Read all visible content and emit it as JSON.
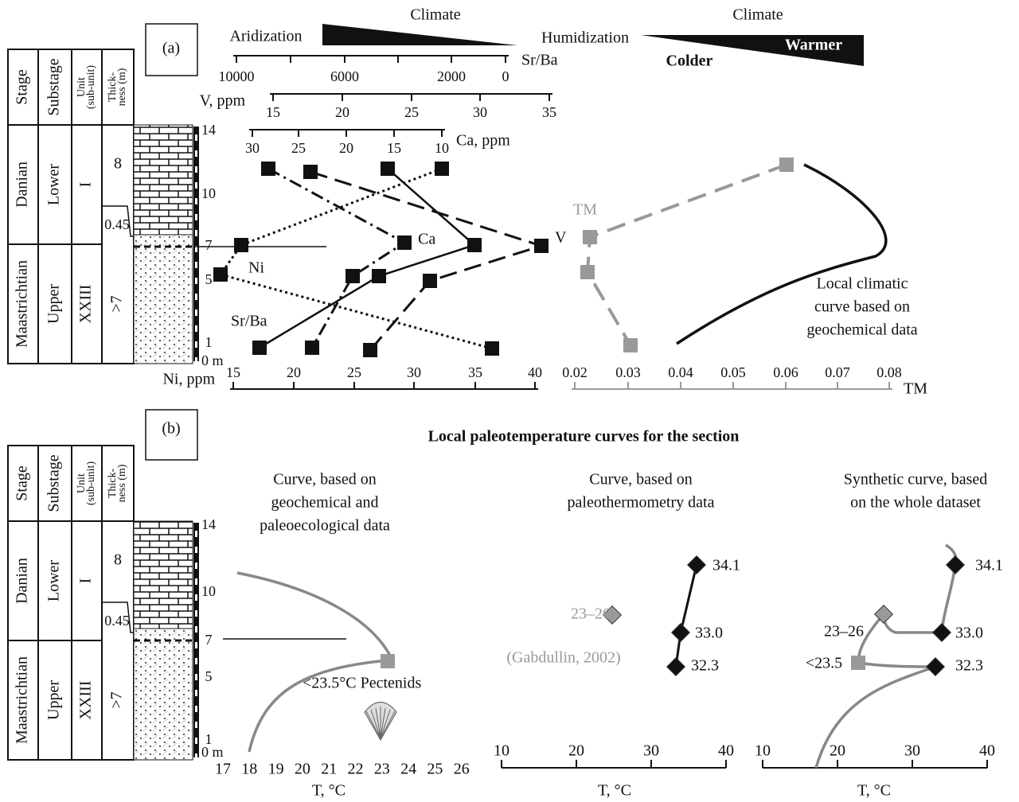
{
  "panel_a": {
    "label": "(a)",
    "table": {
      "headers": [
        [
          "Stage"
        ],
        [
          "Substage"
        ],
        [
          "Unit",
          "(sub-unit)"
        ],
        [
          "Thick-",
          "ness (m)"
        ]
      ],
      "stages": [
        "Danian",
        "Maastrichtian"
      ],
      "substages": [
        "Lower",
        "Upper"
      ],
      "units": [
        "I",
        "XXIII"
      ],
      "thickness": [
        "8",
        ">7"
      ],
      "thin_layer": "0.45",
      "depths": [
        "14",
        "10",
        "7",
        "5",
        "1",
        "0 m"
      ]
    },
    "climate_left": {
      "title": "Climate",
      "left": "Aridization",
      "right": "Humidization"
    },
    "climate_right": {
      "title": "Climate",
      "left": "Colder",
      "right": "Warmer"
    },
    "axes": {
      "srba": {
        "label": "Sr/Ba",
        "ticks": [
          "10000",
          "6000",
          "2000",
          "0"
        ]
      },
      "v": {
        "label": "V, ppm",
        "ticks": [
          "15",
          "20",
          "25",
          "30",
          "35"
        ]
      },
      "ca": {
        "label": "Ca, ppm",
        "ticks": [
          "30",
          "25",
          "20",
          "15",
          "10"
        ]
      },
      "ni": {
        "label": "Ni, ppm",
        "ticks": [
          "15",
          "20",
          "25",
          "30",
          "35",
          "40"
        ]
      },
      "tm": {
        "label": "TM",
        "ticks": [
          "0.02",
          "0.03",
          "0.04",
          "0.05",
          "0.06",
          "0.07",
          "0.08"
        ]
      }
    },
    "curve_labels": {
      "ca": "Ca",
      "v": "V",
      "ni": "Ni",
      "srba": "Sr/Ba",
      "tm": "TM",
      "climatic": [
        "Local climatic",
        "curve based on",
        "geochemical data"
      ]
    }
  },
  "panel_b": {
    "label": "(b)",
    "title": "Local paleotemperature curves for the section",
    "table": {
      "headers": [
        [
          "Stage"
        ],
        [
          "Substage"
        ],
        [
          "Unit",
          "(sub-unit)"
        ],
        [
          "Thick-",
          "ness (m)"
        ]
      ],
      "stages": [
        "Danian",
        "Maastrichtian"
      ],
      "substages": [
        "Lower",
        "Upper"
      ],
      "units": [
        "I",
        "XXIII"
      ],
      "thickness": [
        "8",
        ">7"
      ],
      "thin_layer": "0.45",
      "depths": [
        "14",
        "10",
        "7",
        "5",
        "1",
        "0 m"
      ]
    },
    "curve1": {
      "subtitle": [
        "Curve, based on",
        "geochemical and",
        "paleoecological data"
      ],
      "annotation": "<23.5°C Pectenids",
      "ticks": [
        "17",
        "18",
        "19",
        "20",
        "21",
        "22",
        "23",
        "24",
        "25",
        "26"
      ],
      "axis_label": "T, °C"
    },
    "curve2": {
      "subtitle": [
        "Curve, based on",
        "paleothermometry data"
      ],
      "points": [
        "34.1",
        "33.0",
        "32.3"
      ],
      "reference": [
        "23–26",
        "(Gabdullin, 2002)"
      ],
      "ticks": [
        "10",
        "20",
        "30",
        "40"
      ],
      "axis_label": "T, °C"
    },
    "curve3": {
      "subtitle": [
        "Synthetic curve, based",
        "on the whole dataset"
      ],
      "points": [
        "34.1",
        "33.0",
        "32.3"
      ],
      "extra": [
        "23–26",
        "<23.5"
      ],
      "ticks": [
        "10",
        "20",
        "30",
        "40"
      ],
      "axis_label": "T, °C"
    }
  }
}
